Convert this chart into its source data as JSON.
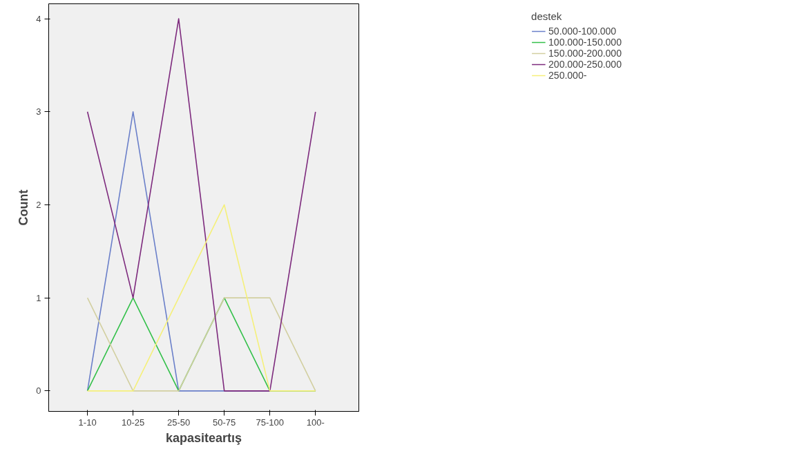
{
  "chart_data": {
    "type": "line",
    "xlabel": "kapasiteartış",
    "ylabel": "Count",
    "legend_title": "destek",
    "legend": "right",
    "grid": false,
    "marker": "none",
    "line_style": "solid",
    "categories": [
      "1-10",
      "10-25",
      "25-50",
      "50-75",
      "75-100",
      "100-"
    ],
    "ylim": [
      -0.22,
      4.16
    ],
    "yticks": [
      0,
      1,
      2,
      3,
      4
    ],
    "series": [
      {
        "name": "50.000-100.000",
        "color": "#6a7fc9",
        "values": [
          0,
          3,
          0,
          0,
          0,
          0
        ]
      },
      {
        "name": "100.000-150.000",
        "color": "#33c04a",
        "values": [
          0,
          1,
          0,
          1,
          0,
          0
        ]
      },
      {
        "name": "150.000-200.000",
        "color": "#d2cfa0",
        "values": [
          1,
          0,
          0,
          1,
          1,
          0
        ]
      },
      {
        "name": "200.000-250.000",
        "color": "#7d2a7d",
        "values": [
          3,
          1,
          4,
          0,
          0,
          3
        ]
      },
      {
        "name": "250.000-",
        "color": "#f5f07a",
        "values": [
          0,
          0,
          1,
          2,
          0,
          0
        ]
      }
    ]
  }
}
